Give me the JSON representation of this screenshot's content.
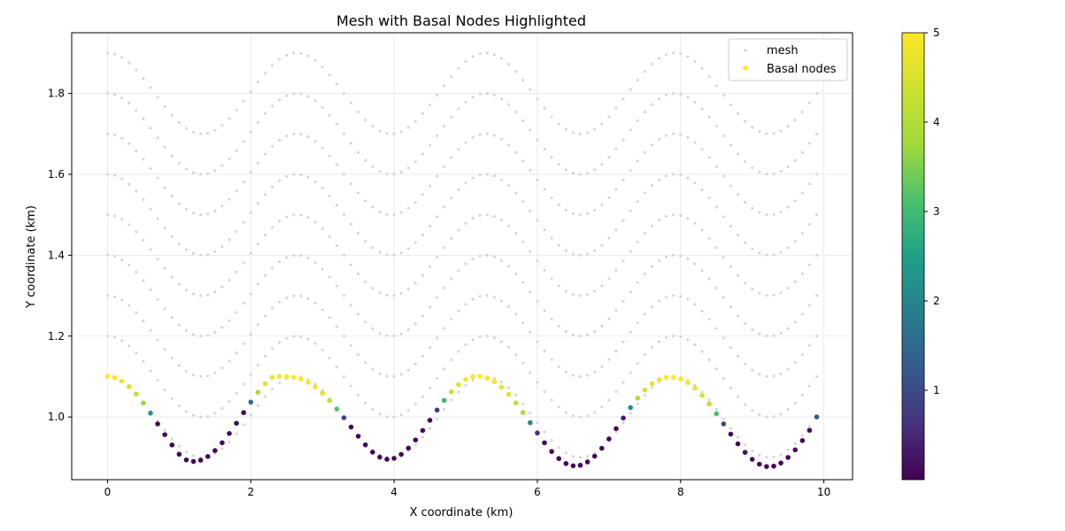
{
  "chart_data": {
    "type": "scatter",
    "title": "Mesh with Basal Nodes Highlighted",
    "xlabel": "X coordinate (km)",
    "ylabel": "Y coordinate (km)",
    "xlim": [
      -0.5,
      10.4
    ],
    "ylim": [
      0.845,
      1.95
    ],
    "xticks": [
      0,
      2,
      4,
      6,
      8,
      10
    ],
    "xtick_labels": [
      "0",
      "2",
      "4",
      "6",
      "8",
      "10"
    ],
    "yticks": [
      1.0,
      1.2,
      1.4,
      1.6,
      1.8
    ],
    "ytick_labels": [
      "1.0",
      "1.2",
      "1.4",
      "1.6",
      "1.8"
    ],
    "grid": true,
    "legend_location": "upper right",
    "legend": [
      {
        "label": "mesh",
        "color": "#d3d3d3"
      },
      {
        "label": "Basal nodes",
        "color": "#fde725"
      }
    ],
    "series": [
      {
        "name": "mesh",
        "color": "#d3d3d3",
        "x_range": [
          0.0,
          9.9
        ],
        "x_step": 0.1,
        "wave": {
          "amplitude": 0.1,
          "period_km": 2.64
        },
        "layer_offsets": [
          1.0,
          1.1,
          1.2,
          1.3,
          1.4,
          1.5,
          1.6,
          1.7,
          1.8
        ]
      },
      {
        "name": "Basal nodes",
        "x": [
          0.0,
          0.1,
          0.2,
          0.3,
          0.4,
          0.5,
          0.6,
          0.7,
          0.8,
          0.9,
          1.0,
          1.1,
          1.2,
          1.3,
          1.4,
          1.5,
          1.6,
          1.7,
          1.8,
          1.9,
          2.0,
          2.1,
          2.2,
          2.3,
          2.4,
          2.5,
          2.6,
          2.7,
          2.8,
          2.9,
          3.0,
          3.1,
          3.2,
          3.3,
          3.4,
          3.5,
          3.6,
          3.7,
          3.8,
          3.9,
          4.0,
          4.1,
          4.2,
          4.3,
          4.4,
          4.5,
          4.6,
          4.7,
          4.8,
          4.9,
          5.0,
          5.1,
          5.2,
          5.3,
          5.4,
          5.5,
          5.6,
          5.7,
          5.8,
          5.9,
          6.0,
          6.1,
          6.2,
          6.3,
          6.4,
          6.5,
          6.6,
          6.7,
          6.8,
          6.9,
          7.0,
          7.1,
          7.2,
          7.3,
          7.4,
          7.5,
          7.6,
          7.7,
          7.8,
          7.9,
          8.0,
          8.1,
          8.2,
          8.3,
          8.4,
          8.5,
          8.6,
          8.7,
          8.8,
          8.9,
          9.0,
          9.1,
          9.2,
          9.3,
          9.4,
          9.5,
          9.6,
          9.7,
          9.8,
          9.9
        ],
        "y": [
          1.1,
          1.0972,
          1.0887,
          1.0751,
          1.0567,
          1.0345,
          1.0095,
          0.9829,
          0.9563,
          0.9309,
          0.908,
          0.8939,
          0.8901,
          0.8932,
          0.9024,
          0.917,
          0.9363,
          0.9592,
          0.9845,
          1.0108,
          1.0368,
          1.0611,
          1.0823,
          1.0977,
          1.1001,
          1.0998,
          1.0983,
          1.0939,
          1.0859,
          1.0741,
          1.0588,
          1.0404,
          1.0196,
          0.998,
          0.9751,
          0.9524,
          0.9311,
          0.9131,
          0.9007,
          0.8954,
          0.8978,
          0.9075,
          0.923,
          0.9432,
          0.9667,
          0.9919,
          1.0172,
          1.0411,
          1.0624,
          1.0798,
          1.0925,
          1.0994,
          1.1001,
          1.0959,
          1.0871,
          1.0736,
          1.0559,
          1.0348,
          1.0111,
          0.9859,
          0.9605,
          0.9363,
          0.9147,
          0.8971,
          0.8849,
          0.8793,
          0.8806,
          0.8888,
          0.9031,
          0.9225,
          0.9457,
          0.9712,
          0.9975,
          1.0232,
          1.0467,
          1.0667,
          1.0822,
          1.0926,
          1.0977,
          1.0981,
          1.094,
          1.0849,
          1.0712,
          1.0533,
          1.0319,
          1.0081,
          0.9829,
          0.9576,
          0.9337,
          0.9125,
          0.8953,
          0.8833,
          0.8775,
          0.8785,
          0.8862,
          0.8999,
          0.9188,
          0.9417,
          0.967,
          1.0
        ],
        "c": [
          5.0,
          4.9,
          4.7,
          4.5,
          4.2,
          3.7,
          2.3,
          0.1,
          0.1,
          0.1,
          0.1,
          0.1,
          0.1,
          0.1,
          0.1,
          0.1,
          0.1,
          0.1,
          0.1,
          0.1,
          1.5,
          3.9,
          4.6,
          4.8,
          4.9,
          5.0,
          5.0,
          5.0,
          4.9,
          4.8,
          4.6,
          4.2,
          3.2,
          0.9,
          0.1,
          0.1,
          0.1,
          0.1,
          0.1,
          0.1,
          0.1,
          0.1,
          0.1,
          0.1,
          0.1,
          0.1,
          0.7,
          2.9,
          4.3,
          4.6,
          4.8,
          4.9,
          5.0,
          5.0,
          4.9,
          4.8,
          4.6,
          4.2,
          3.9,
          2.1,
          0.6,
          0.1,
          0.1,
          0.1,
          0.1,
          0.1,
          0.1,
          0.1,
          0.1,
          0.1,
          0.1,
          0.1,
          0.3,
          2.1,
          4.0,
          4.5,
          4.7,
          4.9,
          5.0,
          5.0,
          5.0,
          4.9,
          4.7,
          4.5,
          4.2,
          3.1,
          1.0,
          0.1,
          0.1,
          0.1,
          0.1,
          0.1,
          0.1,
          0.1,
          0.1,
          0.1,
          0.1,
          0.1,
          0.1,
          1.2
        ],
        "colormap": "viridis"
      }
    ],
    "colorbar": {
      "range": [
        0.0,
        5.0
      ],
      "ticks": [
        1,
        2,
        3,
        4,
        5
      ],
      "tick_labels": [
        "1",
        "2",
        "3",
        "4",
        "5"
      ],
      "colormap": "viridis"
    }
  }
}
